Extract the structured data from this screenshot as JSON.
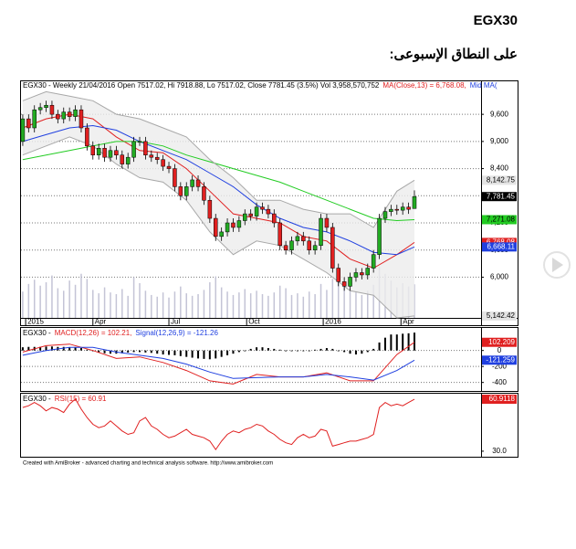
{
  "header": {
    "title": "EGX30",
    "subtitle": "على النطاق الإسبوعى:"
  },
  "chart_data": [
    {
      "type": "candlestick",
      "title": "EGX30 - Weekly 21/04/2016 Open 7517.02, Hi 7918.88, Lo 7517.02, Close 7781.45 (3.5%) Vol 3,958,570,752",
      "open": [
        9000,
        9500,
        9300,
        9700,
        9750,
        9800,
        9600,
        9500,
        9650,
        9550,
        9700,
        9300,
        8900,
        8700,
        8850,
        8650,
        8800,
        8700,
        8500,
        8650,
        9000,
        9000,
        8700,
        8650,
        8600,
        8450,
        8400,
        8000,
        7800,
        8000,
        8150,
        8000,
        7700,
        7300,
        6900,
        7000,
        7200,
        7100,
        7250,
        7400,
        7350,
        7550,
        7500,
        7400,
        7200,
        6700,
        6600,
        6800,
        6900,
        6800,
        6600,
        6700,
        7300,
        7100,
        6200,
        5900,
        5800,
        6000,
        6100,
        6050,
        6200,
        6500,
        7300,
        7450,
        7500,
        7480,
        7550,
        7517.02
      ],
      "high": [
        9600,
        9600,
        9800,
        9850,
        9900,
        9900,
        9700,
        9750,
        9750,
        9800,
        9800,
        9400,
        9000,
        8950,
        8950,
        8900,
        8900,
        8800,
        8750,
        9100,
        9100,
        9100,
        8800,
        8750,
        8700,
        8550,
        8500,
        8100,
        8100,
        8250,
        8250,
        8100,
        7800,
        7400,
        7100,
        7300,
        7300,
        7350,
        7500,
        7500,
        7650,
        7650,
        7600,
        7500,
        7300,
        6800,
        6900,
        7000,
        7000,
        6900,
        6800,
        7400,
        7400,
        7200,
        6300,
        6000,
        6100,
        6200,
        6200,
        6300,
        6600,
        7400,
        7550,
        7600,
        7600,
        7650,
        7650,
        7918.88
      ],
      "low": [
        8900,
        9200,
        9200,
        9600,
        9650,
        9500,
        9400,
        9400,
        9450,
        9450,
        9200,
        8800,
        8600,
        8600,
        8550,
        8550,
        8600,
        8400,
        8400,
        8550,
        8900,
        8600,
        8550,
        8500,
        8350,
        8300,
        7900,
        7700,
        7700,
        7900,
        7900,
        7600,
        7200,
        6800,
        6800,
        6900,
        7000,
        7000,
        7150,
        7250,
        7250,
        7400,
        7300,
        7100,
        6600,
        6500,
        6500,
        6700,
        6700,
        6500,
        6500,
        6600,
        7000,
        6100,
        5800,
        5700,
        5700,
        5900,
        5950,
        5950,
        6100,
        6400,
        7200,
        7350,
        7380,
        7380,
        7400,
        7517.02
      ],
      "close": [
        9500,
        9300,
        9700,
        9750,
        9800,
        9600,
        9500,
        9650,
        9550,
        9700,
        9300,
        8900,
        8700,
        8850,
        8650,
        8800,
        8700,
        8500,
        8650,
        9000,
        9000,
        8700,
        8650,
        8600,
        8450,
        8400,
        8000,
        7800,
        8000,
        8150,
        8000,
        7700,
        7300,
        6900,
        7000,
        7200,
        7100,
        7250,
        7400,
        7350,
        7550,
        7500,
        7400,
        7200,
        6700,
        6600,
        6800,
        6900,
        6800,
        6600,
        6700,
        7300,
        7100,
        6200,
        5900,
        5800,
        6000,
        6100,
        6050,
        6200,
        6500,
        7300,
        7450,
        7500,
        7480,
        7550,
        7500,
        7781.45
      ],
      "close_label": "7,781.45",
      "up_color": "#22aa22",
      "down_color": "#e02020",
      "volume": {
        "color": "#c4c4d6",
        "vlim": [
          0,
          28000000000
        ],
        "values": [
          3100000000.0,
          4000000000.0,
          4500000000.0,
          3800000000.0,
          4200000000.0,
          5000000000.0,
          3500000000.0,
          3200000000.0,
          4400000000.0,
          3900000000.0,
          5200000000.0,
          4600000000.0,
          3300000000.0,
          2900000000.0,
          3600000000.0,
          3000000000.0,
          2800000000.0,
          3400000000.0,
          2600000000.0,
          4800000000.0,
          4100000000.0,
          3200000000.0,
          2700000000.0,
          2500000000.0,
          3000000000.0,
          2400000000.0,
          3100000000.0,
          3700000000.0,
          2900000000.0,
          2600000000.0,
          2800000000.0,
          3300000000.0,
          4200000000.0,
          4900000000.0,
          3600000000.0,
          3100000000.0,
          2700000000.0,
          3000000000.0,
          3400000000.0,
          2900000000.0,
          3200000000.0,
          2800000000.0,
          2600000000.0,
          3000000000.0,
          3800000000.0,
          3500000000.0,
          2700000000.0,
          2900000000.0,
          2500000000.0,
          3100000000.0,
          2800000000.0,
          4000000000.0,
          3300000000.0,
          4600000000.0,
          4900000000.0,
          3800000000.0,
          3400000000.0,
          3000000000.0,
          2700000000.0,
          3200000000.0,
          3900000000.0,
          6000000000.0,
          5200000000.0,
          4400000000.0,
          3600000000.0,
          4100000000.0,
          3700000000.0,
          3958570752
        ]
      },
      "band_fill": "#ececec",
      "series": [
        {
          "name": "MA(Close,13) = 6,768.08,",
          "color": "#e02020",
          "x": [
            0,
            4,
            8,
            12,
            16,
            20,
            24,
            28,
            32,
            36,
            40,
            44,
            48,
            52,
            56,
            60,
            64,
            67
          ],
          "values": [
            9300,
            9500,
            9600,
            9500,
            9100,
            8800,
            8750,
            8400,
            7900,
            7400,
            7300,
            7200,
            6900,
            6800,
            6400,
            6200,
            6500,
            6768.08
          ],
          "last_label": "6,768.08"
        },
        {
          "name": "Mid MA(",
          "color": "#2040e0",
          "x": [
            0,
            4,
            8,
            12,
            16,
            20,
            24,
            28,
            32,
            36,
            40,
            44,
            48,
            52,
            56,
            60,
            64,
            67
          ],
          "values": [
            9000,
            9150,
            9300,
            9350,
            9250,
            9000,
            8800,
            8600,
            8300,
            8000,
            7600,
            7300,
            7100,
            7000,
            6800,
            6550,
            6500,
            6668.11
          ],
          "last_label": "6,668.11"
        },
        {
          "color": "#22cc22",
          "x": [
            0,
            4,
            8,
            12,
            16,
            20,
            24,
            28,
            32,
            36,
            40,
            44,
            48,
            52,
            56,
            60,
            64,
            67
          ],
          "values": [
            8600,
            8700,
            8800,
            8900,
            9000,
            9000,
            8900,
            8700,
            8550,
            8400,
            8250,
            8100,
            7900,
            7700,
            7500,
            7300,
            7250,
            7271.08
          ],
          "last_label": "7,271.08"
        },
        {
          "color": "#a8a8a8",
          "band": "upper",
          "x": [
            0,
            4,
            8,
            12,
            16,
            20,
            24,
            28,
            32,
            36,
            40,
            44,
            48,
            52,
            56,
            60,
            64,
            67
          ],
          "values": [
            9900,
            10100,
            10000,
            9900,
            9600,
            9500,
            9300,
            9100,
            8600,
            8200,
            7700,
            7700,
            7500,
            7400,
            7400,
            7100,
            7900,
            8142.75
          ],
          "last_label": "8,142.75"
        },
        {
          "color": "#a8a8a8",
          "band": "lower",
          "x": [
            0,
            4,
            8,
            12,
            16,
            20,
            24,
            28,
            32,
            36,
            40,
            44,
            48,
            52,
            56,
            60,
            64,
            67
          ],
          "values": [
            8700,
            8900,
            9100,
            8900,
            8500,
            8200,
            8100,
            7700,
            7000,
            6500,
            6800,
            6700,
            6400,
            6100,
            5700,
            5600,
            5100,
            5142.42
          ],
          "last_label": "5,142.42"
        }
      ],
      "xlim": [
        -0.3,
        78.4
      ],
      "xticks": [
        {
          "value": 0.5,
          "label": "2015"
        },
        {
          "value": 12,
          "label": "Apr"
        },
        {
          "value": 25,
          "label": "Jul"
        },
        {
          "value": 38.3,
          "label": "Oct"
        },
        {
          "value": 51.4,
          "label": "2016"
        },
        {
          "value": 64.7,
          "label": "Apr"
        }
      ],
      "ylim": [
        5100,
        10350
      ],
      "yticks": [
        {
          "value": 9600,
          "label": "9,600"
        },
        {
          "value": 9000,
          "label": "9,000"
        },
        {
          "value": 8400,
          "label": "8,400"
        },
        {
          "value": 7800,
          "label": "7,800"
        },
        {
          "value": 7200,
          "label": "7,200"
        },
        {
          "value": 6600,
          "label": "6,600"
        },
        {
          "value": 6000,
          "label": "6,000"
        }
      ],
      "grid": true
    },
    {
      "type": "line",
      "title": "EGX30 -",
      "series": [
        {
          "name": "MACD(12,26) = 102.21,",
          "color": "#e02020",
          "x": [
            0,
            4,
            8,
            12,
            16,
            20,
            24,
            28,
            32,
            36,
            40,
            44,
            48,
            52,
            56,
            60,
            64,
            67
          ],
          "values": [
            -20,
            60,
            80,
            0,
            -100,
            -80,
            -150,
            -250,
            -380,
            -420,
            -300,
            -330,
            -330,
            -280,
            -380,
            -380,
            -50,
            102.209
          ],
          "last_label": "102.209"
        },
        {
          "name": "Signal(12,26,9) = -121.26",
          "color": "#2040e0",
          "x": [
            0,
            4,
            8,
            12,
            16,
            20,
            24,
            28,
            32,
            36,
            40,
            44,
            48,
            52,
            56,
            60,
            64,
            67
          ],
          "values": [
            -60,
            0,
            40,
            40,
            -20,
            -60,
            -100,
            -170,
            -270,
            -350,
            -340,
            -330,
            -330,
            -300,
            -330,
            -370,
            -250,
            -121.259
          ],
          "last_label": "-121.259"
        }
      ],
      "histogram": {
        "color": "#000000",
        "values": [
          40,
          45,
          45,
          45,
          50,
          50,
          45,
          45,
          40,
          40,
          30,
          10,
          -10,
          -25,
          -35,
          -40,
          -40,
          -35,
          -25,
          -20,
          -20,
          -25,
          -30,
          -40,
          -50,
          -55,
          -60,
          -70,
          -80,
          -90,
          -100,
          -105,
          -110,
          -100,
          -80,
          -60,
          -40,
          -20,
          0,
          20,
          40,
          40,
          30,
          20,
          10,
          0,
          0,
          0,
          0,
          0,
          10,
          20,
          30,
          20,
          0,
          -20,
          -40,
          -50,
          -40,
          -20,
          20,
          100,
          160,
          200,
          200,
          210,
          215,
          223.47
        ]
      },
      "ylim": [
        -518,
        282
      ],
      "yticks": [
        0,
        -200,
        -400
      ],
      "grid": true
    },
    {
      "type": "line",
      "title": "EGX30 -",
      "series": [
        {
          "name": "RSI(15) = 60.91",
          "color": "#e02020",
          "values": [
            56,
            57,
            59,
            57,
            54,
            56,
            55,
            53,
            58,
            61,
            55,
            50,
            46,
            44,
            45,
            48,
            45,
            42,
            40,
            41,
            48,
            50,
            45,
            43,
            40,
            38,
            39,
            41,
            43,
            40,
            39,
            38,
            36,
            31,
            36,
            40,
            42,
            41,
            43,
            44,
            46,
            45,
            42,
            40,
            37,
            35,
            34,
            38,
            40,
            38,
            39,
            43,
            42,
            33,
            34,
            35,
            36,
            36,
            37,
            38,
            40,
            56,
            59,
            57,
            58,
            57,
            59,
            60.9118
          ],
          "last_label": "60.9118"
        }
      ],
      "ylim": [
        26.7,
        64.2
      ],
      "yticks": [
        {
          "value": 30,
          "label": "30.0"
        }
      ],
      "grid": false
    }
  ],
  "footer": "Created with AmiBroker - advanced charting and technical analysis software. http://www.amibroker.com"
}
